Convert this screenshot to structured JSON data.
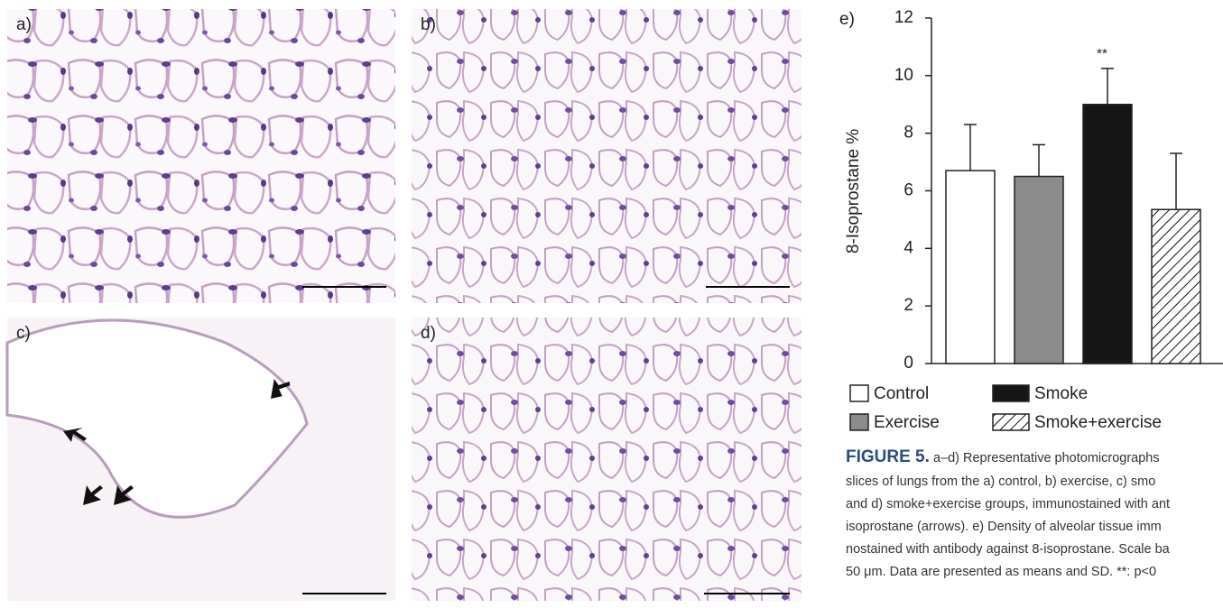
{
  "panels": [
    {
      "label": "a)"
    },
    {
      "label": "b)"
    },
    {
      "label": "c)"
    },
    {
      "label": "d)"
    }
  ],
  "chart_data": {
    "type": "bar",
    "panel_label": "e)",
    "y_label": "8-Isoprostane %",
    "categories": [
      "Control",
      "Exercise",
      "Smoke",
      "Smoke+exercise"
    ],
    "values": [
      6.7,
      6.5,
      9.0,
      5.35
    ],
    "errors": [
      1.6,
      1.1,
      1.25,
      1.95
    ],
    "colors": [
      "#ffffff",
      "#8c8c8c",
      "#161616",
      "#ffffff"
    ],
    "hatched": [
      false,
      false,
      false,
      true
    ],
    "annotations": [
      "**"
    ],
    "ylim": [
      0,
      12
    ],
    "yticks": [
      0,
      2,
      4,
      6,
      8,
      10,
      12
    ]
  },
  "caption": {
    "label": "FIGURE 5.",
    "lines": [
      "a–d) Representative photomicrographs",
      "slices of lungs from the a) control, b) exercise, c) smo",
      "and d) smoke+exercise groups, immunostained with ant",
      "isoprostane (arrows). e) Density of alveolar tissue imm",
      "nostained with antibody against 8-isoprostane. Scale ba",
      "50 μm. Data are presented as means and SD. **: p<0"
    ]
  }
}
